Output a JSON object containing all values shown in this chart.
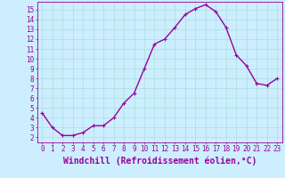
{
  "x": [
    0,
    1,
    2,
    3,
    4,
    5,
    6,
    7,
    8,
    9,
    10,
    11,
    12,
    13,
    14,
    15,
    16,
    17,
    18,
    19,
    20,
    21,
    22,
    23
  ],
  "y": [
    4.5,
    3.0,
    2.2,
    2.2,
    2.5,
    3.2,
    3.2,
    4.0,
    5.5,
    6.5,
    9.0,
    11.5,
    12.0,
    13.2,
    14.5,
    15.1,
    15.5,
    14.8,
    13.2,
    10.4,
    9.3,
    7.5,
    7.3,
    8.0
  ],
  "line_color": "#990099",
  "marker": "+",
  "markersize": 3,
  "linewidth": 1.0,
  "xlabel": "Windchill (Refroidissement éolien,°C)",
  "xlabel_fontsize": 7,
  "background_color": "#cceeff",
  "grid_color": "#aadddd",
  "tick_color": "#990099",
  "xlim": [
    -0.5,
    23.5
  ],
  "ylim": [
    1.5,
    15.8
  ],
  "yticks": [
    2,
    3,
    4,
    5,
    6,
    7,
    8,
    9,
    10,
    11,
    12,
    13,
    14,
    15
  ],
  "xticks": [
    0,
    1,
    2,
    3,
    4,
    5,
    6,
    7,
    8,
    9,
    10,
    11,
    12,
    13,
    14,
    15,
    16,
    17,
    18,
    19,
    20,
    21,
    22,
    23
  ],
  "tick_fontsize": 5.5
}
